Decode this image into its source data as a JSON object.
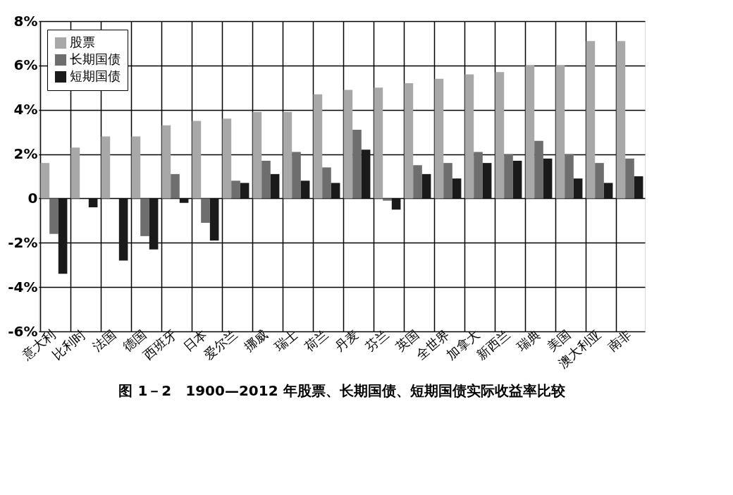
{
  "chart_data": {
    "type": "bar",
    "title": "图 1－2　1900—2012 年股票、长期国债、短期国债实际收益率比较",
    "categories": [
      "意大利",
      "比利时",
      "法国",
      "德国",
      "西班牙",
      "日本",
      "爱尔兰",
      "挪威",
      "瑞士",
      "荷兰",
      "丹麦",
      "芬兰",
      "英国",
      "全世界",
      "加拿大",
      "新西兰",
      "瑞典",
      "美国",
      "澳大利亚",
      "南非"
    ],
    "series": [
      {
        "name": "股票",
        "color": "#a8a8a8",
        "values": [
          1.6,
          2.3,
          2.8,
          2.8,
          3.3,
          3.5,
          3.6,
          3.9,
          3.9,
          4.7,
          4.9,
          5.0,
          5.2,
          5.4,
          5.6,
          5.7,
          6.0,
          6.0,
          7.1,
          7.1
        ]
      },
      {
        "name": "长期国债",
        "color": "#6e6e6e",
        "values": [
          -1.6,
          0.0,
          0.0,
          -1.7,
          1.1,
          -1.1,
          0.8,
          1.7,
          2.1,
          1.4,
          3.1,
          -0.1,
          1.5,
          1.6,
          2.1,
          2.0,
          2.6,
          2.0,
          1.6,
          1.8
        ]
      },
      {
        "name": "短期国债",
        "color": "#1a1a1a",
        "values": [
          -3.4,
          -0.4,
          -2.8,
          -2.3,
          -0.2,
          -1.9,
          0.7,
          1.1,
          0.8,
          0.7,
          2.2,
          -0.5,
          1.1,
          0.9,
          1.6,
          1.7,
          1.8,
          0.9,
          0.7,
          1.0
        ]
      }
    ],
    "ylim": [
      -6,
      8
    ],
    "yticks": [
      {
        "value": -6,
        "label": "-6%"
      },
      {
        "value": -4,
        "label": "-4%"
      },
      {
        "value": -2,
        "label": "-2%"
      },
      0,
      {
        "value": 2,
        "label": "2%"
      },
      {
        "value": 4,
        "label": "4%"
      },
      {
        "value": 6,
        "label": "6%"
      },
      {
        "value": 8,
        "label": "8%"
      }
    ],
    "grid": true,
    "legend": "top left"
  }
}
